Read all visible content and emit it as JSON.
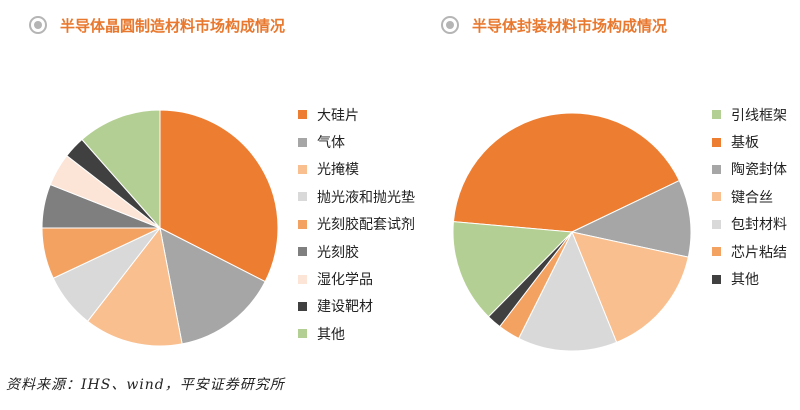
{
  "colors": {
    "accent": "#E8782E",
    "icon_ring": "#B5B5B5"
  },
  "chart_data": [
    {
      "type": "pie",
      "title": "半导体晶圆制造材料市场构成情况",
      "legend_position": "right",
      "start_angle_deg": 0,
      "direction": "clockwise",
      "slices": [
        {
          "name": "大硅片",
          "value": 32.5,
          "color": "#ED7D31"
        },
        {
          "name": "气体",
          "value": 14.5,
          "color": "#A6A6A6"
        },
        {
          "name": "光掩模",
          "value": 13.5,
          "color": "#F9BF8F"
        },
        {
          "name": "抛光液和抛光垫",
          "value": 7.5,
          "color": "#D9D9D9"
        },
        {
          "name": "光刻胶配套试剂",
          "value": 7,
          "color": "#F4A262"
        },
        {
          "name": "光刻胶",
          "value": 6,
          "color": "#7F7F7F"
        },
        {
          "name": "湿化学品",
          "value": 4.5,
          "color": "#FCE4D6"
        },
        {
          "name": "建设靶材",
          "value": 3,
          "color": "#404040"
        },
        {
          "name": "其他",
          "value": 11.5,
          "color": "#B4CF93"
        }
      ]
    },
    {
      "type": "pie",
      "title": "半导体封装材料市场构成情况",
      "legend_position": "right",
      "start_angle_deg": -85,
      "direction": "clockwise",
      "slices": [
        {
          "name": "基板",
          "value": 41.5,
          "color": "#ED7D31"
        },
        {
          "name": "陶瓷封体",
          "value": 10.5,
          "color": "#A6A6A6"
        },
        {
          "name": "键合丝",
          "value": 15.5,
          "color": "#F9BF8F"
        },
        {
          "name": "包封材料",
          "value": 13.5,
          "color": "#D9D9D9"
        },
        {
          "name": "芯片粘结",
          "value": 3,
          "color": "#F4A262"
        },
        {
          "name": "其他",
          "value": 2,
          "color": "#404040"
        },
        {
          "name": "引线框架",
          "value": 14,
          "color": "#B4CF93"
        }
      ],
      "legend_order": [
        "引线框架",
        "基板",
        "陶瓷封体",
        "键合丝",
        "包封材料",
        "芯片粘结",
        "其他"
      ]
    }
  ],
  "footnote": "资料来源：IHS、wind，平安证券研究所"
}
